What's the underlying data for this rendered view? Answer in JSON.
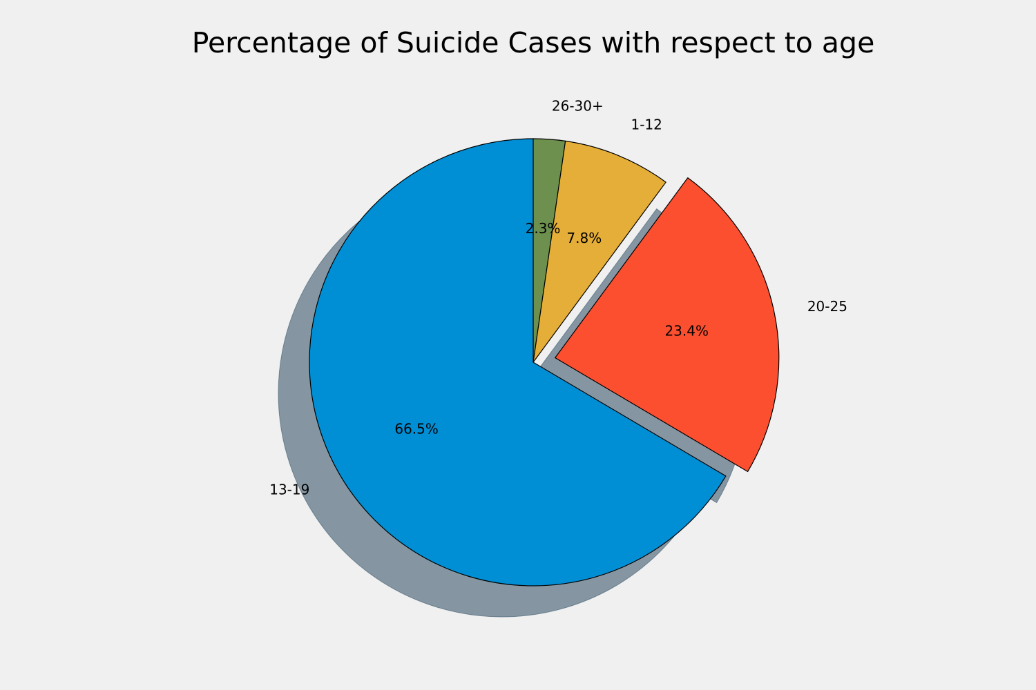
{
  "chart_data": {
    "type": "pie",
    "title": "Percentage of Suicide Cases with respect to age",
    "start_angle_deg": 90,
    "direction": "clockwise",
    "shadow": true,
    "slices": [
      {
        "label": "26-30+",
        "value": 2.3,
        "pct_label": "2.3%",
        "color": "#6d904f",
        "explode": 0
      },
      {
        "label": "1-12",
        "value": 7.8,
        "pct_label": "7.8%",
        "color": "#e5ae38",
        "explode": 0
      },
      {
        "label": "20-25",
        "value": 23.4,
        "pct_label": "23.4%",
        "color": "#fc4f30",
        "explode": 0.1
      },
      {
        "label": "13-19",
        "value": 66.5,
        "pct_label": "66.5%",
        "color": "#008fd5",
        "explode": 0
      }
    ]
  }
}
